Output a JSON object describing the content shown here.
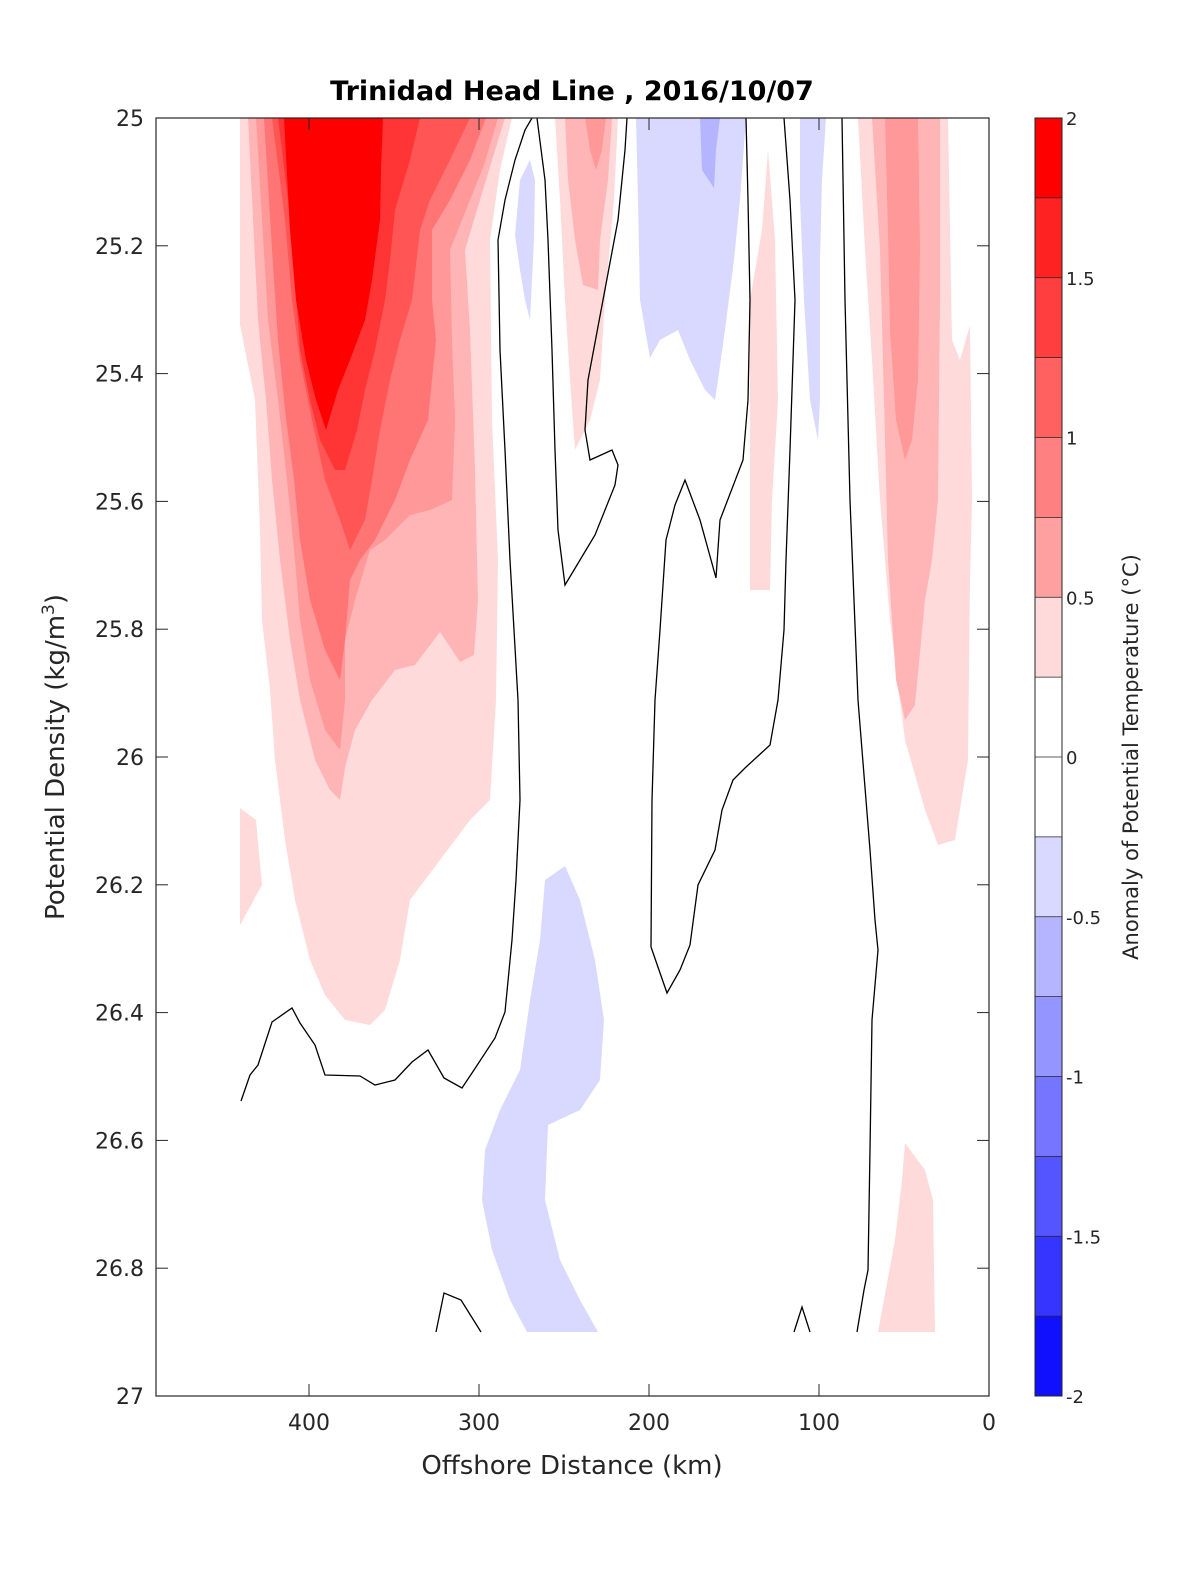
{
  "chart_data": {
    "type": "contour",
    "title": "Trinidad Head Line , 2016/10/07",
    "xlabel": "Offshore Distance (km)",
    "ylabel_main": "Potential Density (kg/m",
    "ylabel_sup": "3",
    "ylabel_close": ")",
    "xlim": [
      490,
      0
    ],
    "ylim": [
      25,
      27
    ],
    "x_reversed": true,
    "y_reversed": true,
    "x_ticks": [
      400,
      300,
      200,
      100,
      0
    ],
    "y_ticks": [
      "25",
      "25.2",
      "25.4",
      "25.6",
      "25.8",
      "26",
      "26.2",
      "26.4",
      "26.6",
      "26.8",
      "27"
    ],
    "colorbar": {
      "label": "Anomaly of Potential Temperature (°C)",
      "range": [
        -2,
        2
      ],
      "step": 0.25,
      "tick_labels": [
        "2",
        "1.5",
        "1",
        "0.5",
        "0",
        "-0.5",
        "-1",
        "-1.5",
        "-2"
      ],
      "tick_values": [
        2,
        1.5,
        1,
        0.5,
        0,
        -0.5,
        -1,
        -1.5,
        -2
      ],
      "colors_top_to_bottom": [
        "#ff0000",
        "#ff2222",
        "#ff3f3f",
        "#ff6060",
        "#ff8080",
        "#ffa0a0",
        "#ffdada",
        "#ffffff",
        "#ffffff",
        "#d9d9ff",
        "#b5b5ff",
        "#9595ff",
        "#7575ff",
        "#5555ff",
        "#3535ff",
        "#1010ff"
      ]
    },
    "contour_fill_levels": [
      {
        "level": 0.25,
        "color": "#ffdada"
      },
      {
        "level": 0.5,
        "color": "#ffb5b5"
      },
      {
        "level": 0.75,
        "color": "#ff9898"
      },
      {
        "level": 1.0,
        "color": "#ff7575"
      },
      {
        "level": 1.25,
        "color": "#ff5555"
      },
      {
        "level": 1.5,
        "color": "#ff3535"
      },
      {
        "level": 1.75,
        "color": "#ff0000"
      },
      {
        "level": -0.25,
        "color": "#d9d9ff"
      },
      {
        "level": -0.5,
        "color": "#b5b5ff"
      }
    ],
    "zero_contour": "black line"
  }
}
